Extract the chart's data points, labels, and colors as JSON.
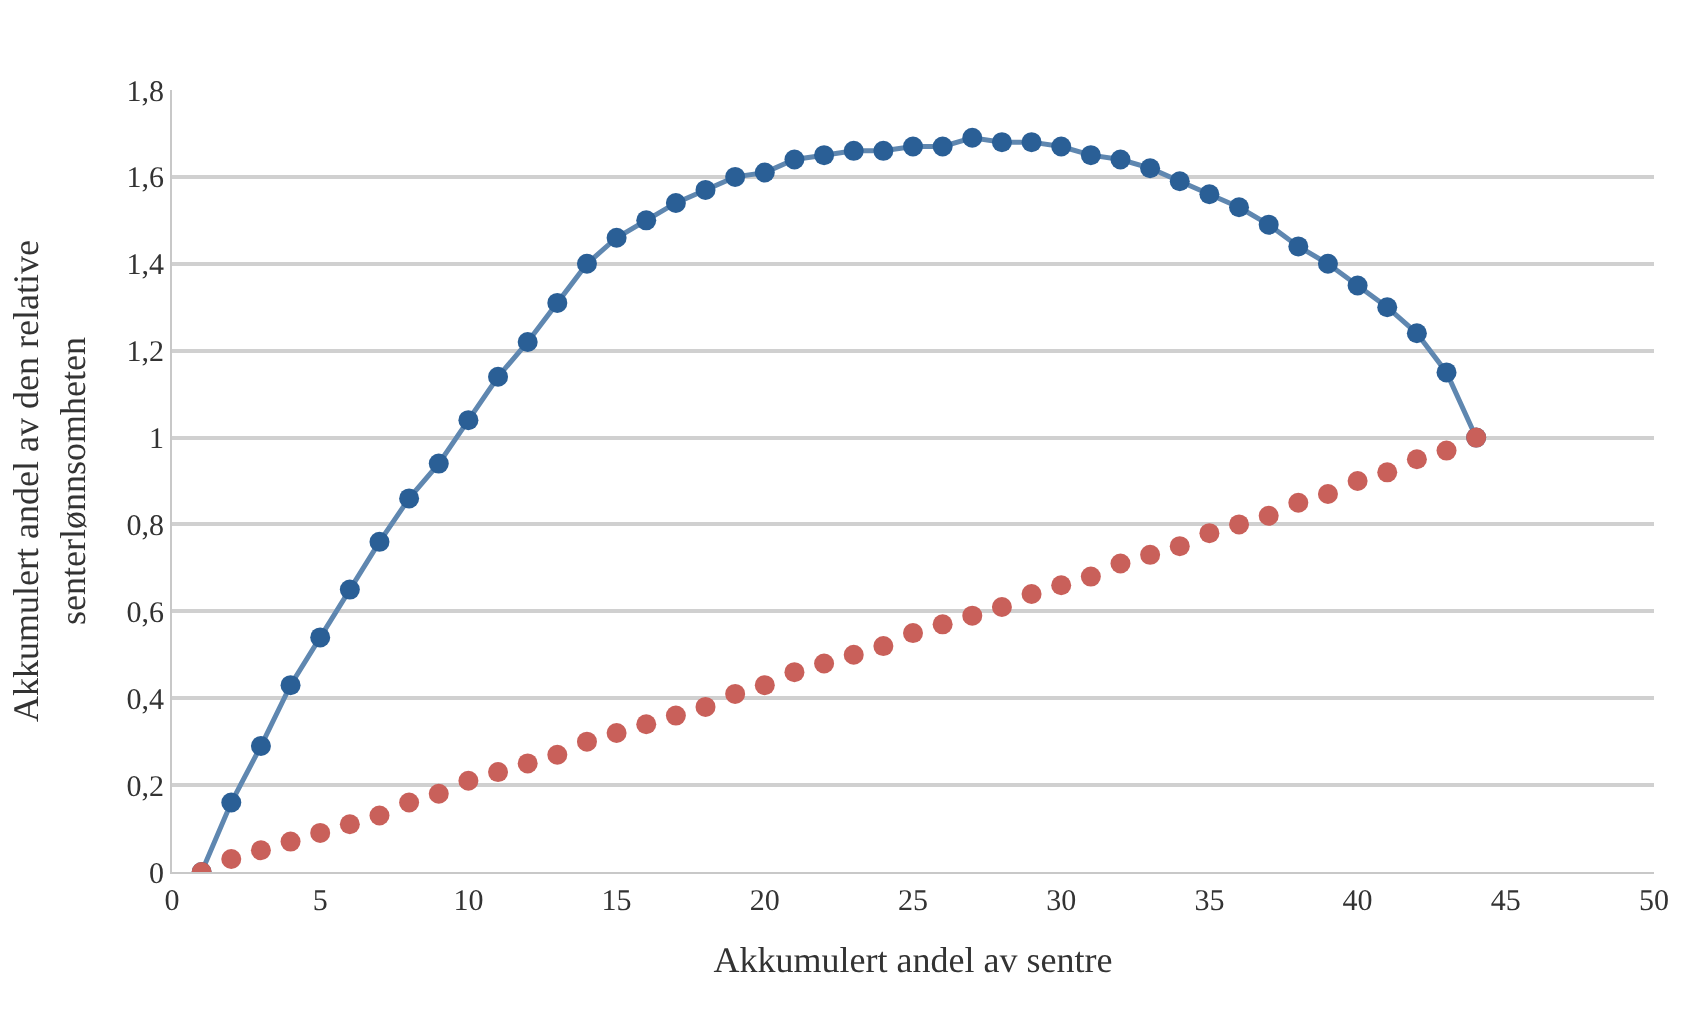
{
  "chart_data": {
    "type": "line",
    "xlabel": "Akkumulert andel av sentre",
    "ylabel": "Akkumulert andel av den relative senterlønnsomheten",
    "x": [
      1,
      2,
      3,
      4,
      5,
      6,
      7,
      8,
      9,
      10,
      11,
      12,
      13,
      14,
      15,
      16,
      17,
      18,
      19,
      20,
      21,
      22,
      23,
      24,
      25,
      26,
      27,
      28,
      29,
      30,
      31,
      32,
      33,
      34,
      35,
      36,
      37,
      38,
      39,
      40,
      41,
      42,
      43,
      44
    ],
    "series": [
      {
        "color": "#2a5f96",
        "values": [
          0,
          0.16,
          0.29,
          0.43,
          0.54,
          0.65,
          0.76,
          0.86,
          0.94,
          1.04,
          1.14,
          1.22,
          1.31,
          1.4,
          1.46,
          1.5,
          1.54,
          1.57,
          1.6,
          1.61,
          1.64,
          1.65,
          1.66,
          1.66,
          1.67,
          1.67,
          1.69,
          1.68,
          1.68,
          1.67,
          1.65,
          1.64,
          1.62,
          1.59,
          1.56,
          1.53,
          1.49,
          1.44,
          1.4,
          1.35,
          1.3,
          1.24,
          1.15,
          1.0
        ]
      },
      {
        "type": "scatter",
        "color": "#c9605a",
        "values": [
          0,
          0.03,
          0.05,
          0.07,
          0.09,
          0.11,
          0.13,
          0.16,
          0.18,
          0.21,
          0.23,
          0.25,
          0.27,
          0.3,
          0.32,
          0.34,
          0.36,
          0.38,
          0.41,
          0.43,
          0.46,
          0.48,
          0.5,
          0.52,
          0.55,
          0.57,
          0.59,
          0.61,
          0.64,
          0.66,
          0.68,
          0.71,
          0.73,
          0.75,
          0.78,
          0.8,
          0.82,
          0.85,
          0.87,
          0.9,
          0.92,
          0.95,
          0.97,
          1.0
        ]
      }
    ],
    "xlim": [
      0,
      50
    ],
    "xticks": [
      0,
      5,
      10,
      15,
      20,
      25,
      30,
      35,
      40,
      45,
      50
    ],
    "ylim": [
      0,
      1.8
    ],
    "yticks": [
      0,
      {
        "value": 0.2,
        "label": "0,2"
      },
      {
        "value": 0.4,
        "label": "0,4"
      },
      {
        "value": 0.6,
        "label": "0,6"
      },
      {
        "value": 0.8,
        "label": "0,8"
      },
      1,
      {
        "value": 1.2,
        "label": "1,2"
      },
      {
        "value": 1.4,
        "label": "1,4"
      },
      {
        "value": 1.6,
        "label": "1,6"
      },
      {
        "value": 1.8,
        "label": "1,8"
      }
    ],
    "grid": "y",
    "legend": false,
    "marker": "circle"
  }
}
